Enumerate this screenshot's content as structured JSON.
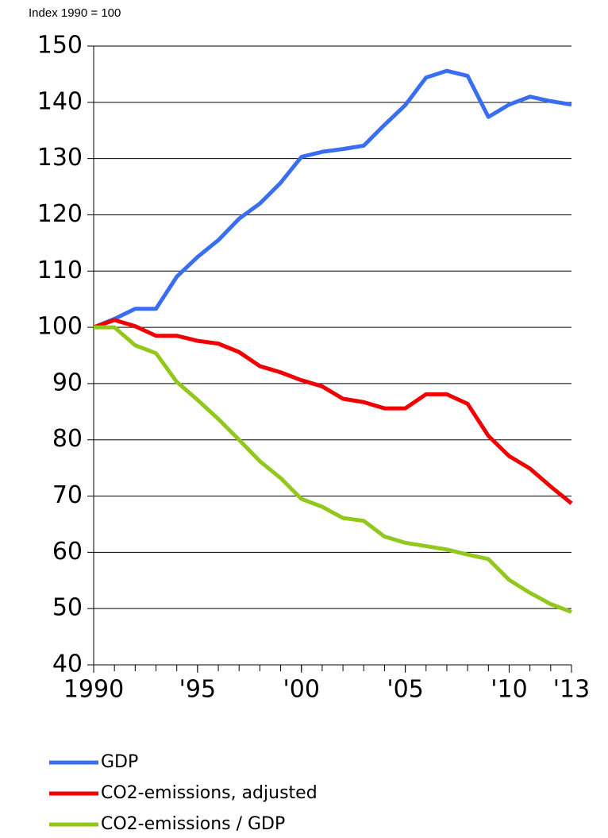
{
  "chart_data": {
    "type": "line",
    "y_label": "Index 1990 = 100",
    "x": [
      1990,
      1991,
      1992,
      1993,
      1994,
      1995,
      1996,
      1997,
      1998,
      1999,
      2000,
      2001,
      2002,
      2003,
      2004,
      2005,
      2006,
      2007,
      2008,
      2009,
      2010,
      2011,
      2012,
      2013
    ],
    "series": [
      {
        "name": "GDP",
        "color": "#3a6ef0",
        "values": [
          100,
          101.5,
          103.3,
          103.3,
          109,
          112.5,
          115.5,
          119.3,
          122,
          125.7,
          130.3,
          131.2,
          131.7,
          132.3,
          136,
          139.5,
          144.4,
          145.6,
          144.7,
          137.4,
          139.6,
          141,
          140.2,
          139.6
        ]
      },
      {
        "name": "CO2-emissions, adjusted",
        "color": "#f00000",
        "values": [
          100,
          101.3,
          100.2,
          98.5,
          98.5,
          97.6,
          97.1,
          95.6,
          93.1,
          92,
          90.6,
          89.5,
          87.3,
          86.7,
          85.6,
          85.6,
          88.1,
          88.1,
          86.4,
          80.7,
          77.1,
          74.9,
          71.7,
          68.7
        ]
      },
      {
        "name": "CO2-emissions / GDP",
        "color": "#92c81e",
        "values": [
          100,
          100,
          96.8,
          95.4,
          90.3,
          87.1,
          83.7,
          80,
          76.2,
          73.2,
          69.5,
          68.1,
          66.1,
          65.6,
          62.8,
          61.7,
          61.1,
          60.5,
          59.6,
          58.8,
          55.1,
          52.8,
          50.8,
          49.4
        ]
      }
    ],
    "xlim": [
      1990,
      2013
    ],
    "xticks": [
      1990,
      {
        "value": 1995,
        "label": "'95"
      },
      {
        "value": 2000,
        "label": "'00"
      },
      {
        "value": 2005,
        "label": "'05"
      },
      {
        "value": 2010,
        "label": "'10"
      },
      {
        "value": 2013,
        "label": "'13"
      }
    ],
    "ylim": [
      40,
      150
    ],
    "yticks": [
      40,
      50,
      60,
      70,
      80,
      90,
      100,
      110,
      120,
      130,
      140,
      150
    ],
    "grid": true,
    "legend": "bottom"
  }
}
